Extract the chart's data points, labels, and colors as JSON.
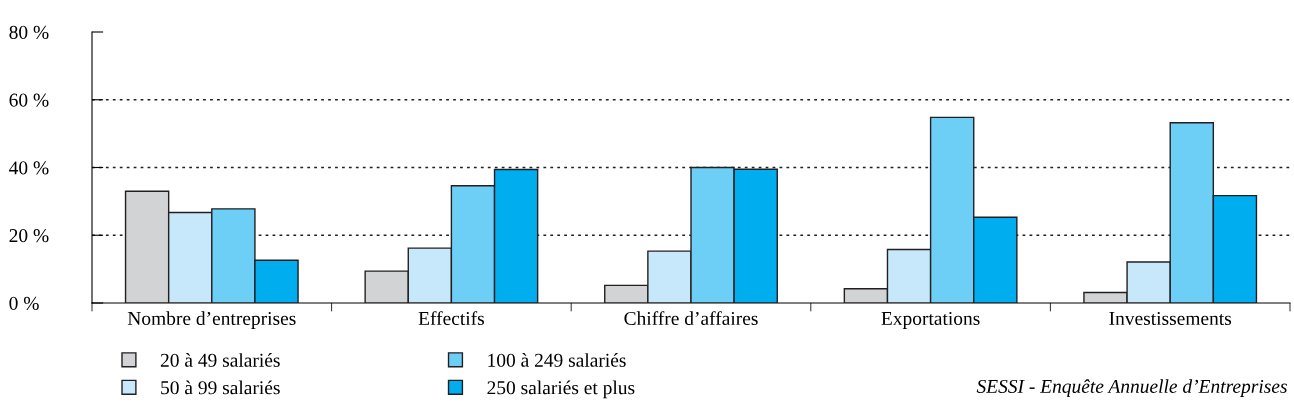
{
  "chart_data": {
    "type": "bar",
    "categories": [
      "Nombre d’entreprises",
      "Effectifs",
      "Chiffre d’affaires",
      "Exportations",
      "Investissements"
    ],
    "series": [
      {
        "name": "20 à 49 salariés",
        "color": "#d1d3d4",
        "values": [
          33.0,
          9.4,
          5.2,
          4.2,
          3.1
        ]
      },
      {
        "name": "50 à 99 salariés",
        "color": "#c6e8fa",
        "values": [
          26.7,
          16.2,
          15.3,
          15.8,
          12.1
        ]
      },
      {
        "name": "100 à 249 salariés",
        "color": "#6dcff6",
        "values": [
          27.8,
          34.6,
          40.0,
          54.8,
          53.2
        ]
      },
      {
        "name": "250 salariés et plus",
        "color": "#00aeef",
        "values": [
          12.6,
          39.4,
          39.5,
          25.3,
          31.7
        ]
      }
    ],
    "ylim": [
      0,
      80
    ],
    "yticks": [
      {
        "value": 0,
        "label": "0 %"
      },
      {
        "value": 20,
        "label": "20 %"
      },
      {
        "value": 40,
        "label": "40 %"
      },
      {
        "value": 60,
        "label": "60 %"
      },
      {
        "value": 80,
        "label": "80 %"
      }
    ],
    "grid": "y",
    "legend": "bottom",
    "annotations": [
      "SESSI - Enquête Annuelle d’Entreprises"
    ]
  }
}
